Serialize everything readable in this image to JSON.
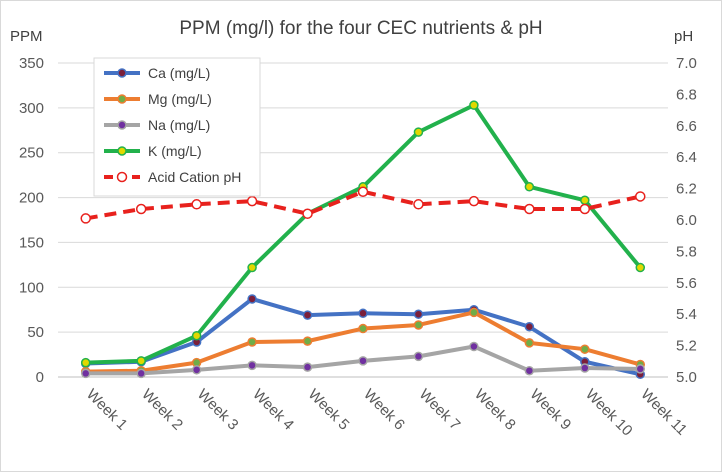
{
  "chart_data": {
    "type": "line",
    "title": "PPM (mg/l) for the four CEC nutrients & pH",
    "ylabel_left": "PPM",
    "ylabel_right": "pH",
    "categories": [
      "Week 1",
      "Week 2",
      "Week 3",
      "Week 4",
      "Week 5",
      "Week 6",
      "Week 7",
      "Week 8",
      "Week 9",
      "Week 10",
      "Week 11"
    ],
    "ylim_left": [
      0,
      350
    ],
    "yticks_left": [
      "0",
      "50",
      "100",
      "150",
      "200",
      "250",
      "300",
      "350"
    ],
    "ylim_right": [
      5.0,
      7.0
    ],
    "yticks_right": [
      "5.0",
      "5.2",
      "5.4",
      "5.6",
      "5.8",
      "6.0",
      "6.2",
      "6.4",
      "6.6",
      "6.8",
      "7.0"
    ],
    "grid": true,
    "legend_position": "top-left",
    "series": [
      {
        "name": "Ca (mg/L)",
        "axis": "left",
        "color": "#4472C4",
        "marker_fill": "#7B1F3A",
        "dashed": false,
        "values": [
          15,
          17,
          39,
          87,
          69,
          71,
          70,
          75,
          56,
          17,
          3
        ]
      },
      {
        "name": "Mg (mg/L)",
        "axis": "left",
        "color": "#ED7D31",
        "marker_fill": "#70AD47",
        "dashed": false,
        "values": [
          6,
          7,
          16,
          39,
          40,
          54,
          58,
          72,
          38,
          31,
          14
        ]
      },
      {
        "name": "Na (mg/L)",
        "axis": "left",
        "color": "#A5A5A5",
        "marker_fill": "#7030A0",
        "dashed": false,
        "values": [
          4,
          4,
          8,
          13,
          11,
          18,
          23,
          34,
          7,
          10,
          9
        ]
      },
      {
        "name": "K (mg/L)",
        "axis": "left",
        "color": "#22B14C",
        "marker_fill": "#E1D800",
        "dashed": false,
        "values": [
          16,
          18,
          46,
          122,
          182,
          212,
          273,
          303,
          212,
          197,
          122
        ]
      },
      {
        "name": "Acid Cation pH",
        "axis": "right",
        "color": "#E8211D",
        "marker_fill": "#FFFFFF",
        "dashed": true,
        "values": [
          6.01,
          6.07,
          6.1,
          6.12,
          6.04,
          6.18,
          6.1,
          6.12,
          6.07,
          6.07,
          6.15
        ]
      }
    ]
  }
}
